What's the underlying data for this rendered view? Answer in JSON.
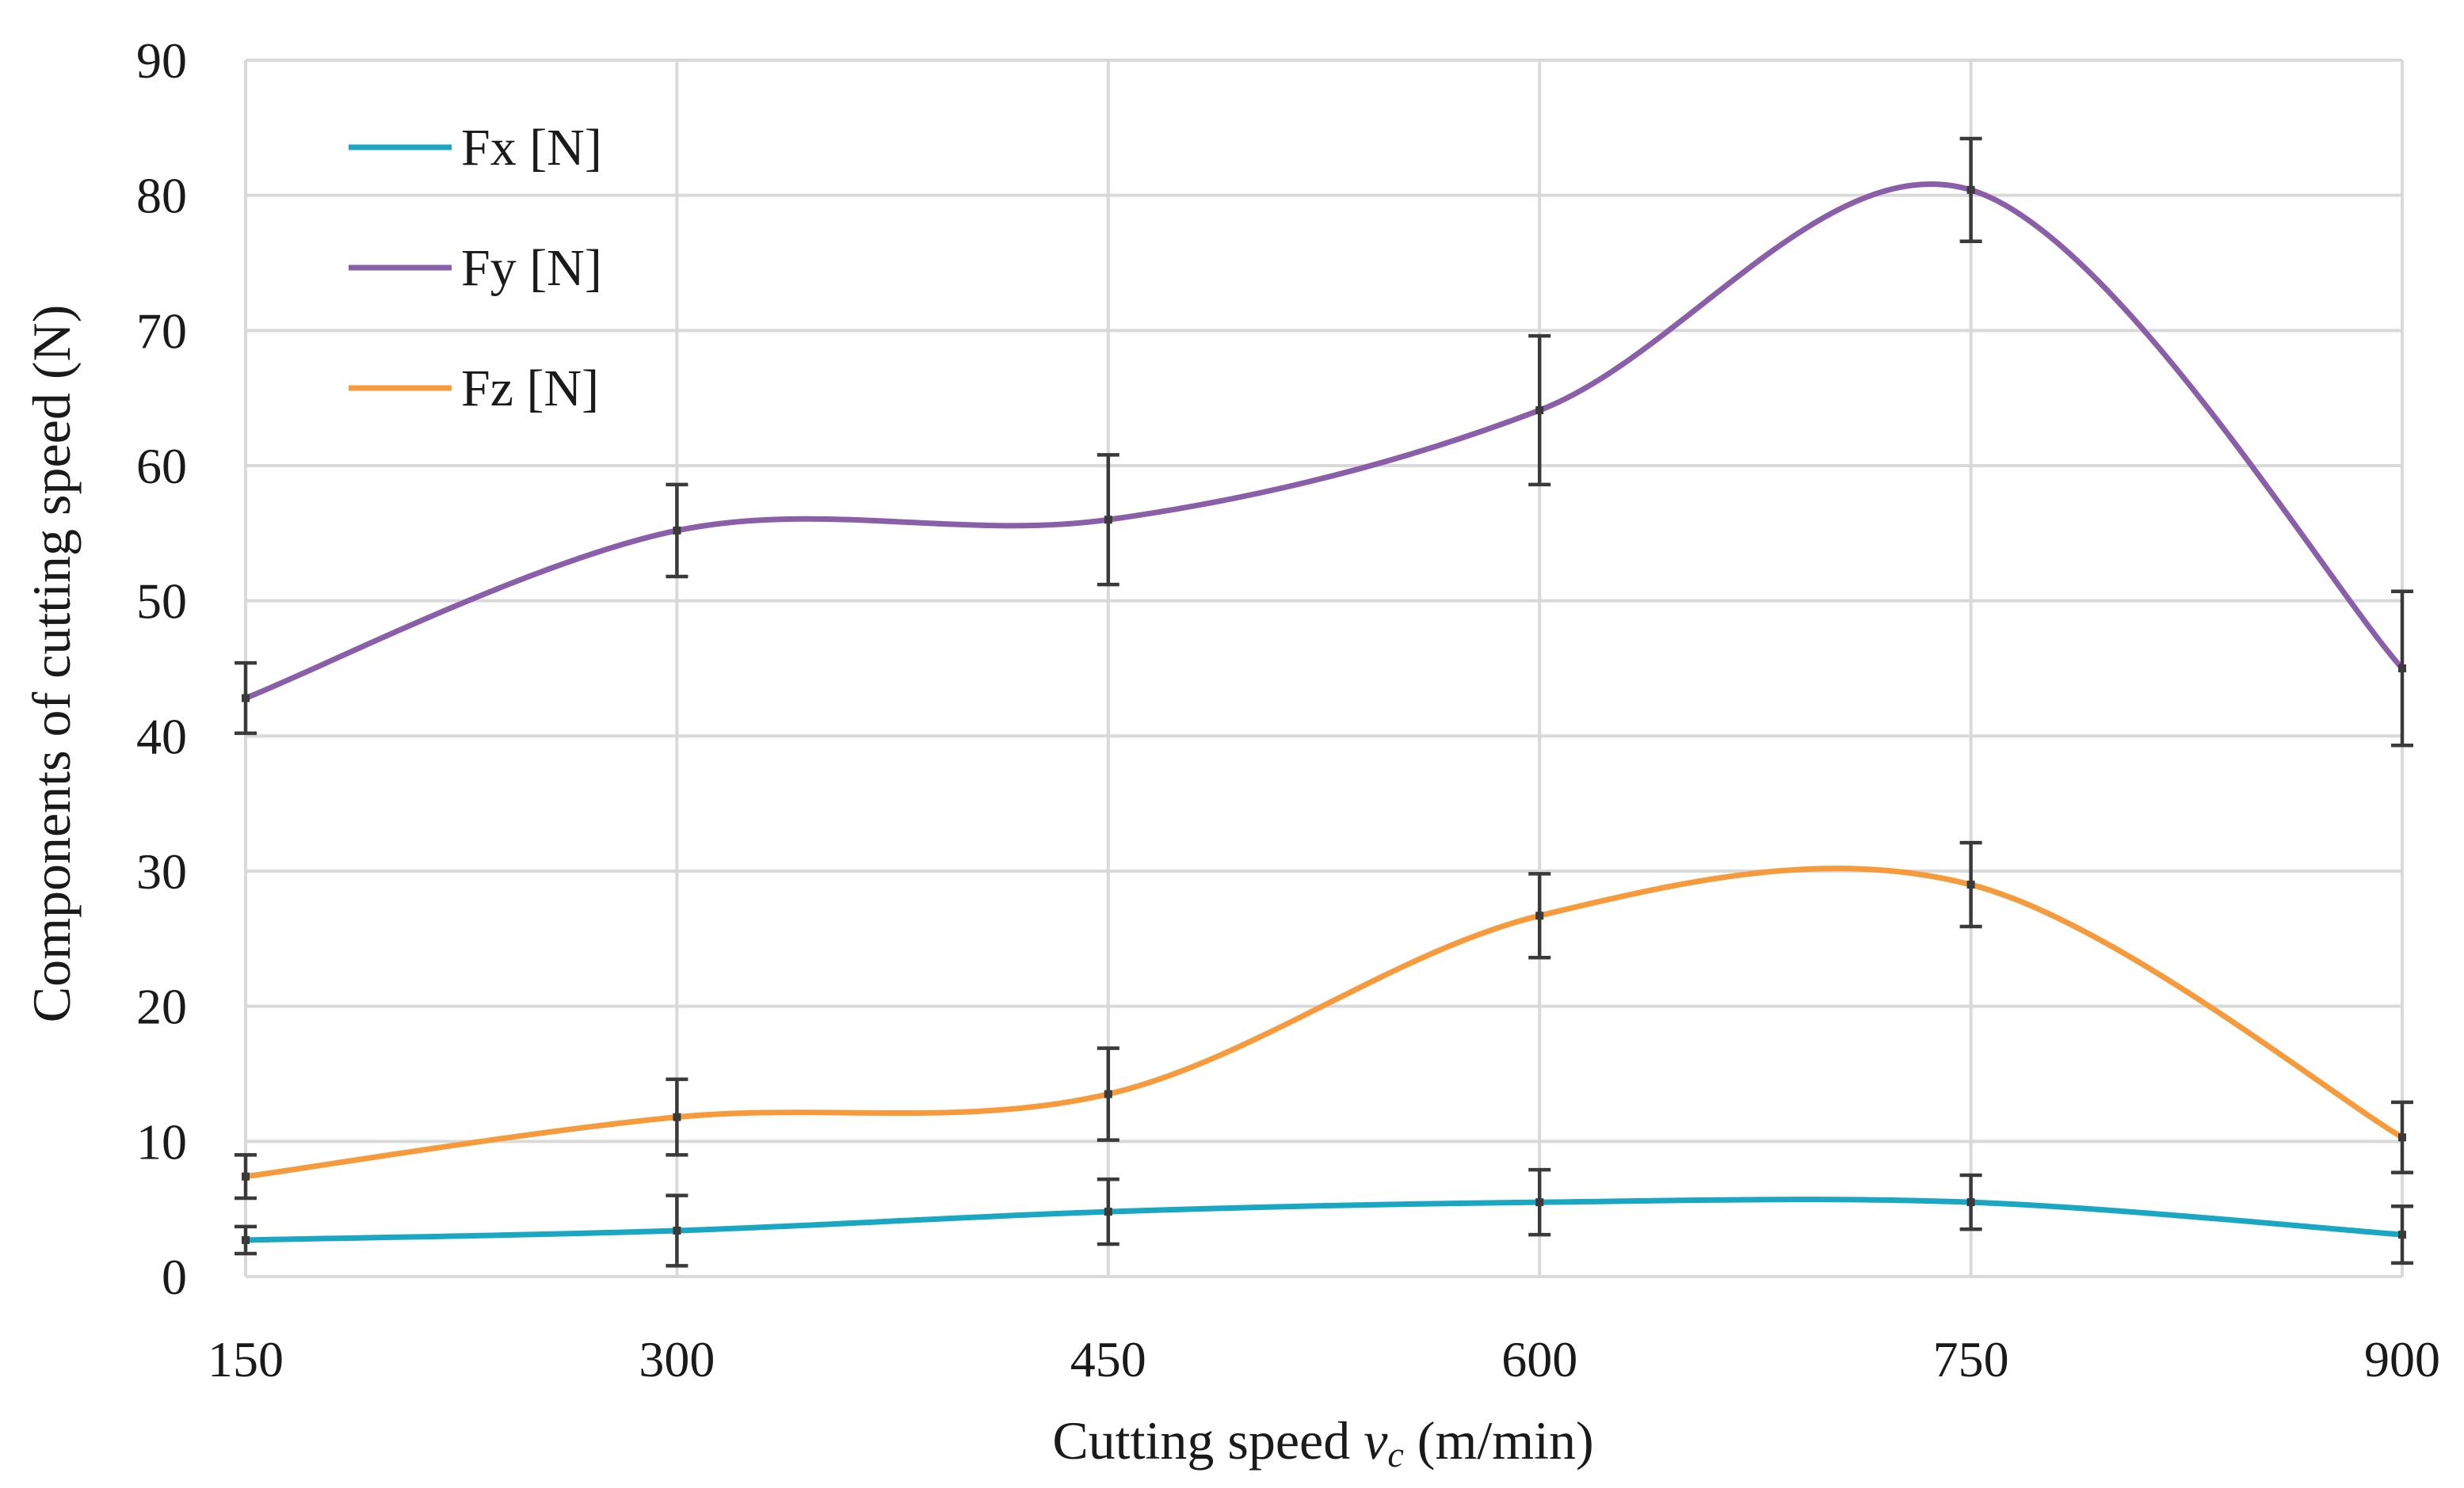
{
  "chart_data": {
    "type": "line",
    "title": "",
    "xlabel_prefix": "Cutting speed ",
    "xlabel_symbol": "v",
    "xlabel_subscript": "c",
    "xlabel_suffix": " (m/min)",
    "ylabel": "Components of cutting speed (N)",
    "x": [
      150,
      300,
      450,
      600,
      750,
      900
    ],
    "x_tick_labels": [
      "150",
      "300",
      "450",
      "600",
      "750",
      "900"
    ],
    "xlim": [
      150,
      900
    ],
    "ylim": [
      0,
      90
    ],
    "y_ticks": [
      0,
      10,
      20,
      30,
      40,
      50,
      60,
      70,
      80,
      90
    ],
    "grid": true,
    "legend_position": "top-left",
    "smooth": true,
    "series": [
      {
        "name": "Fx [N]",
        "color": "#1aa7c4",
        "values": [
          2.7,
          3.4,
          4.8,
          5.5,
          5.5,
          3.1
        ],
        "errors": [
          1.0,
          2.6,
          2.4,
          2.4,
          2.0,
          2.1
        ]
      },
      {
        "name": "Fy [N]",
        "color": "#8a5ea8",
        "values": [
          42.8,
          55.2,
          56.0,
          64.1,
          80.4,
          45.0
        ],
        "errors": [
          2.6,
          3.4,
          4.8,
          5.5,
          3.8,
          5.7
        ]
      },
      {
        "name": "Fz [N]",
        "color": "#f79a3b",
        "values": [
          7.4,
          11.8,
          13.5,
          26.7,
          29.0,
          10.3
        ],
        "errors": [
          1.6,
          2.8,
          3.4,
          3.1,
          3.1,
          2.6
        ]
      }
    ]
  }
}
